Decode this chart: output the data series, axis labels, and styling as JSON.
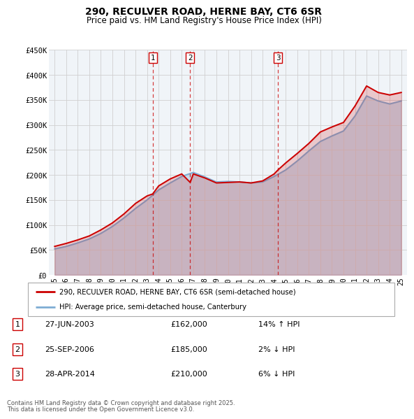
{
  "title_line1": "290, RECULVER ROAD, HERNE BAY, CT6 6SR",
  "title_line2": "Price paid vs. HM Land Registry's House Price Index (HPI)",
  "xlim": [
    1994.5,
    2025.5
  ],
  "ylim": [
    0,
    450000
  ],
  "yticks": [
    0,
    50000,
    100000,
    150000,
    200000,
    250000,
    300000,
    350000,
    400000,
    450000
  ],
  "ytick_labels": [
    "£0",
    "£50K",
    "£100K",
    "£150K",
    "£200K",
    "£250K",
    "£300K",
    "£350K",
    "£400K",
    "£450K"
  ],
  "xticks": [
    1995,
    1996,
    1997,
    1998,
    1999,
    2000,
    2001,
    2002,
    2003,
    2004,
    2005,
    2006,
    2007,
    2008,
    2009,
    2010,
    2011,
    2012,
    2013,
    2014,
    2015,
    2016,
    2017,
    2018,
    2019,
    2020,
    2021,
    2022,
    2023,
    2024,
    2025
  ],
  "red_line_color": "#cc0000",
  "blue_line_color": "#7eadd4",
  "vline_color": "#cc0000",
  "grid_color": "#d0d0d0",
  "bg_color": "#f0f4f8",
  "sale_events": [
    {
      "x": 2003.49,
      "label": "1",
      "price": "£162,000",
      "date": "27-JUN-2003",
      "note": "14% ↑ HPI"
    },
    {
      "x": 2006.73,
      "label": "2",
      "price": "£185,000",
      "date": "25-SEP-2006",
      "note": "2% ↓ HPI"
    },
    {
      "x": 2014.33,
      "label": "3",
      "price": "£210,000",
      "date": "28-APR-2014",
      "note": "6% ↓ HPI"
    }
  ],
  "legend_line1": "290, RECULVER ROAD, HERNE BAY, CT6 6SR (semi-detached house)",
  "legend_line2": "HPI: Average price, semi-detached house, Canterbury",
  "footer_line1": "Contains HM Land Registry data © Crown copyright and database right 2025.",
  "footer_line2": "This data is licensed under the Open Government Licence v3.0.",
  "hpi_years": [
    1995,
    1996,
    1997,
    1998,
    1999,
    2000,
    2001,
    2002,
    2003,
    2004,
    2005,
    2006,
    2007,
    2008,
    2009,
    2010,
    2011,
    2012,
    2013,
    2014,
    2015,
    2016,
    2017,
    2018,
    2019,
    2020,
    2021,
    2022,
    2023,
    2024,
    2025
  ],
  "hpi_values": [
    52000,
    57000,
    64000,
    72000,
    83000,
    97000,
    114000,
    133000,
    150000,
    170000,
    184000,
    197000,
    205000,
    196000,
    186000,
    187000,
    186000,
    184000,
    186000,
    197000,
    210000,
    228000,
    248000,
    267000,
    278000,
    288000,
    318000,
    358000,
    348000,
    342000,
    348000
  ],
  "red_years": [
    1995,
    1996,
    1997,
    1998,
    1999,
    2000,
    2001,
    2002,
    2003,
    2003.49,
    2004,
    2005,
    2006,
    2006.73,
    2007,
    2008,
    2009,
    2010,
    2011,
    2012,
    2013,
    2014,
    2014.33,
    2015,
    2016,
    2017,
    2018,
    2019,
    2020,
    2021,
    2022,
    2023,
    2024,
    2025
  ],
  "red_values": [
    57000,
    63000,
    70000,
    78000,
    90000,
    104000,
    122000,
    143000,
    158000,
    162000,
    178000,
    192000,
    202000,
    185000,
    202000,
    194000,
    184000,
    185000,
    186000,
    184000,
    188000,
    202000,
    210000,
    224000,
    243000,
    263000,
    286000,
    296000,
    305000,
    338000,
    378000,
    365000,
    360000,
    365000
  ]
}
